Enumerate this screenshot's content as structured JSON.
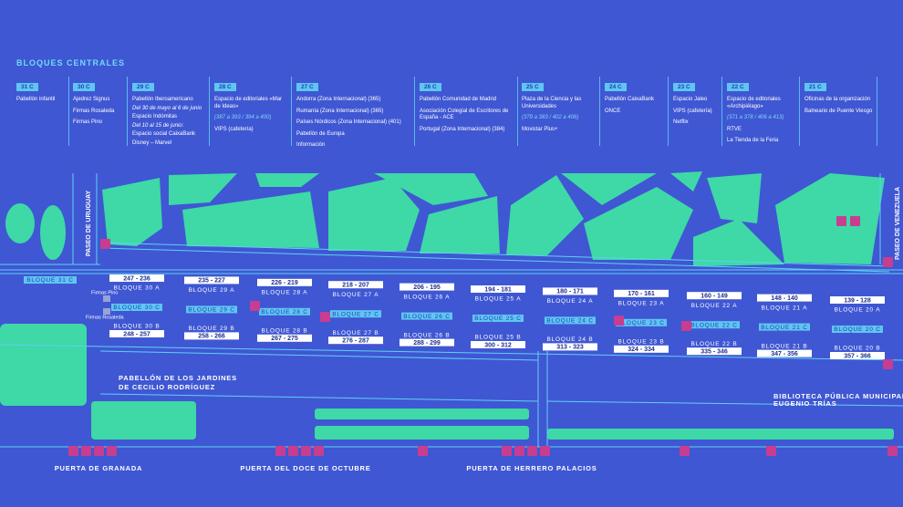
{
  "header": {
    "title": "BLOQUES CENTRALES"
  },
  "columns": [
    {
      "block": "31 C",
      "items": [
        "Pabellón infantil"
      ]
    },
    {
      "block": "30 C",
      "items": [
        "Ajedrez Signus",
        "Firmas Rosaleda",
        "Firmas Pino"
      ]
    },
    {
      "block": "29 C",
      "items": [
        "Pabellón Iberoamericano",
        "Del 30 de mayo al 6 de junio",
        "Espacio Indómitas",
        "Del 10 al 15 de junio:",
        "Espacio social CaixaBank",
        "Disney – Marvel"
      ]
    },
    {
      "block": "28 C",
      "items": [
        "Espacio de editoriales «Mar de Ideas»",
        "(387 a 393 / 394 a 400)",
        "VIPS (cafetería)"
      ]
    },
    {
      "block": "27 C",
      "items": [
        "Andorra (Zona Internacional) (365)",
        "Rumanía (Zona Internacional) (365)",
        "Países Nórdicos (Zona Internacional) (401)",
        "Pabellón de Europa",
        "Información"
      ]
    },
    {
      "block": "26 C",
      "items": [
        "Pabellón Comunidad de Madrid",
        "Asociación Colegial de Escritores de España - ACE",
        "Portugal (Zona Internacional) (384)"
      ]
    },
    {
      "block": "25 C",
      "items": [
        "Plaza de la Ciencia y las Universidades",
        "(379 a 383 / 402 a 406)",
        "Movistar Plus+"
      ]
    },
    {
      "block": "24 C",
      "items": [
        "Pabellón CaixaBank",
        "ONCE"
      ]
    },
    {
      "block": "23 C",
      "items": [
        "Espacio Jaleo",
        "VIPS (cafetería)",
        "Netflix"
      ]
    },
    {
      "block": "22 C",
      "items": [
        "Espacio de editoriales «Archipiélago»",
        "(371 a 378 / 406 a 413)",
        "RTVE",
        "La Tienda de la Feria"
      ]
    },
    {
      "block": "21 C",
      "items": [
        "Oficinas de la organización",
        "Balneario de Puente Viesgo"
      ]
    }
  ],
  "map": {
    "streets": [
      "PASEO DE URUGUAY",
      "PASEO DE VENEZUELA"
    ],
    "buildings": [
      "PABELLÓN DE LOS JARDINES",
      "DE CECILIO RODRÍGUEZ",
      "BIBLIOTECA PÚBLICA MUNICIPAL",
      "EUGENIO TRÍAS"
    ],
    "signs": [
      "Firmas Pino",
      "Firmas Rosaleda"
    ],
    "c_first": "BLOQUE 31 C",
    "a_blocks": [
      {
        "range": "247 - 236",
        "name": "BLOQUE 30 A"
      },
      {
        "range": "235 - 227",
        "name": "BLOQUE 29 A"
      },
      {
        "range": "226 - 219",
        "name": "BLOQUE 28 A"
      },
      {
        "range": "218 - 207",
        "name": "BLOQUE 27 A"
      },
      {
        "range": "206 - 195",
        "name": "BLOQUE 26 A"
      },
      {
        "range": "194 - 181",
        "name": "BLOQUE 25 A"
      },
      {
        "range": "180 - 171",
        "name": "BLOQUE 24 A"
      },
      {
        "range": "170 - 161",
        "name": "BLOQUE 23 A"
      },
      {
        "range": "160 - 149",
        "name": "BLOQUE 22 A"
      },
      {
        "range": "148 - 140",
        "name": "BLOQUE 21 A"
      },
      {
        "range": "139 - 128",
        "name": "BLOQUE 20 A"
      }
    ],
    "c_blocks": [
      "BLOQUE 30 C",
      "BLOQUE 29 C",
      "BLOQUE 28 C",
      "BLOQUE 27 C",
      "BLOQUE 26 C",
      "BLOQUE 25 C",
      "BLOQUE 24 C",
      "BLOQUE 23 C",
      "BLOQUE 22 C",
      "BLOQUE 21 C",
      "BLOQUE 20 C"
    ],
    "b_blocks": [
      {
        "name": "BLOQUE 30 B",
        "range": "248 - 257"
      },
      {
        "name": "BLOQUE 29 B",
        "range": "258 - 266"
      },
      {
        "name": "BLOQUE 28 B",
        "range": "267 - 275"
      },
      {
        "name": "BLOQUE 27 B",
        "range": "276 - 287"
      },
      {
        "name": "BLOQUE 26 B",
        "range": "288 - 299"
      },
      {
        "name": "BLOQUE 25 B",
        "range": "300 - 312"
      },
      {
        "name": "BLOQUE 24 B",
        "range": "313 - 323"
      },
      {
        "name": "BLOQUE 23 B",
        "range": "324 - 334"
      },
      {
        "name": "BLOQUE 22 B",
        "range": "335 - 346"
      },
      {
        "name": "BLOQUE 21 B",
        "range": "347 - 356"
      },
      {
        "name": "BLOQUE 20 B",
        "range": "357 - 366"
      }
    ],
    "gates": [
      "PUERTA DE GRANADA",
      "PUERTA DEL DOCE DE OCTUBRE",
      "PUERTA DE HERRERO PALACIOS"
    ]
  }
}
